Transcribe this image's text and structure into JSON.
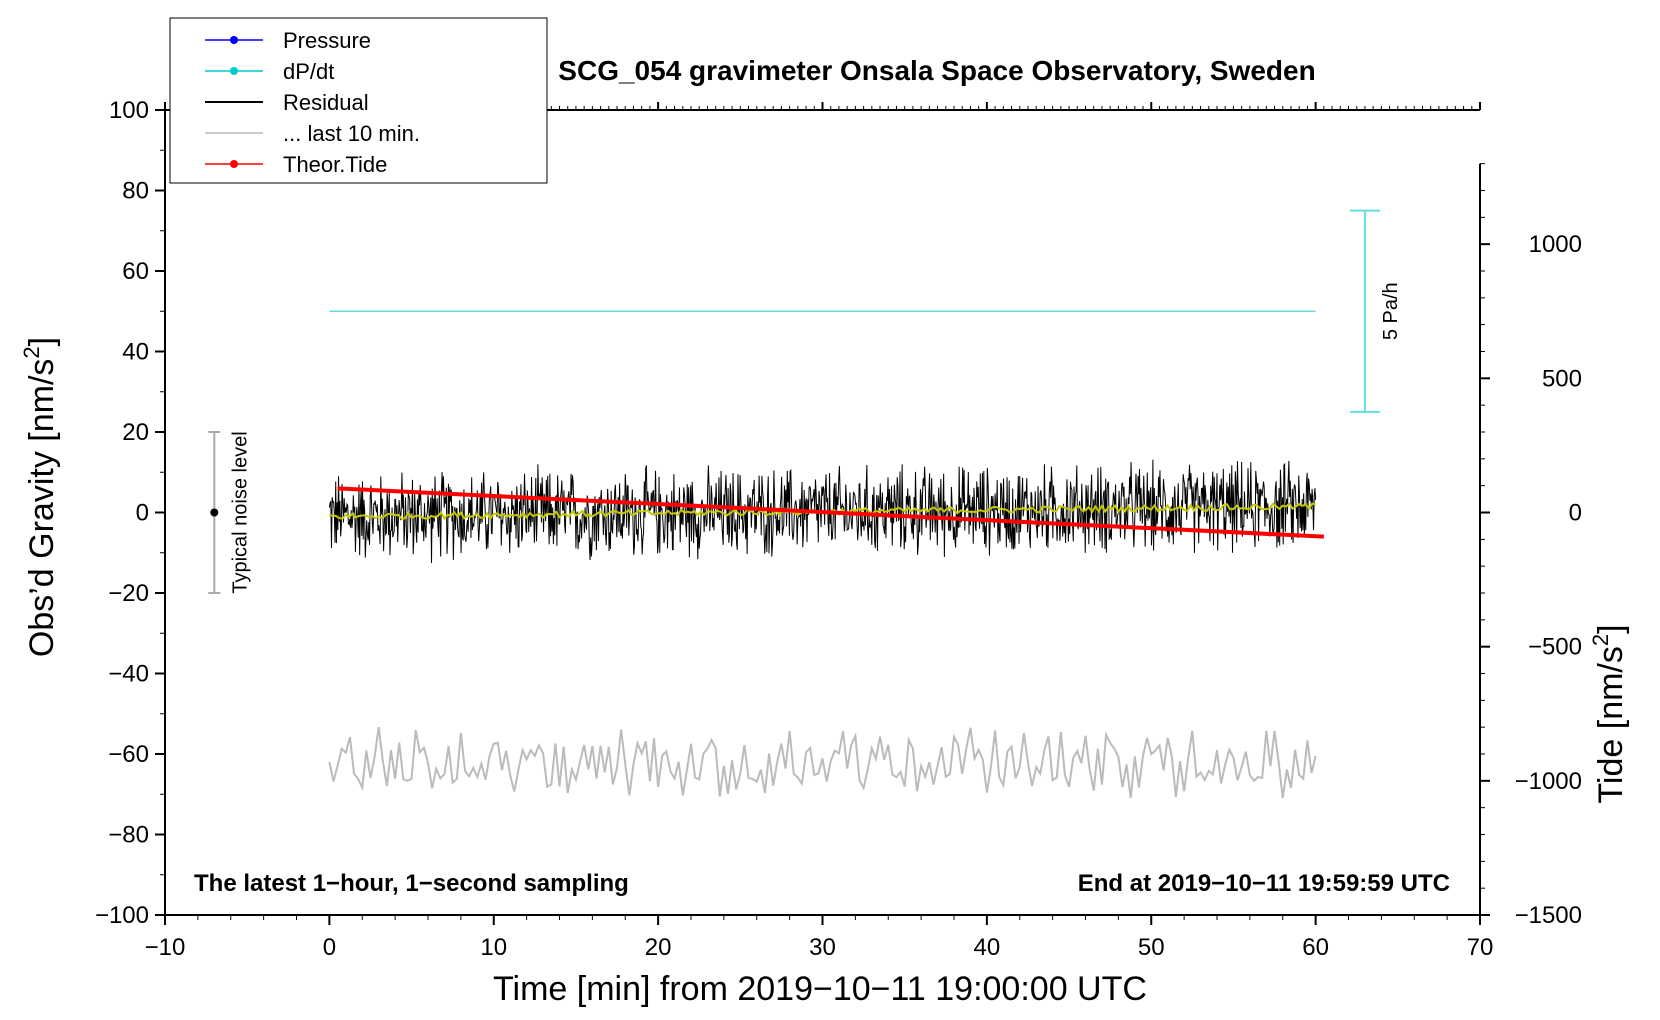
{
  "chart_data": {
    "type": "line",
    "title": "SCG_054 gravimeter Onsala Space Observatory, Sweden",
    "xlabel": "Time [min] from 2019−10−11 19:00:00 UTC",
    "ylabel_left": "Obs’d Gravity [nm/s",
    "ylabel_left_sup": "2",
    "ylabel_left_end": "]",
    "ylabel_right": "Tide [nm/s",
    "ylabel_right_sup": "2",
    "ylabel_right_end": "]",
    "xlim": [
      -10,
      70
    ],
    "ylim_left": [
      -100,
      100
    ],
    "ylim_right": [
      -1500,
      1500
    ],
    "x_ticks": [
      -10,
      0,
      10,
      20,
      30,
      40,
      50,
      60,
      70
    ],
    "x_tick_labels": [
      "−10",
      "0",
      "10",
      "20",
      "30",
      "40",
      "50",
      "60",
      "70"
    ],
    "y_left_ticks": [
      -100,
      -80,
      -60,
      -40,
      -20,
      0,
      20,
      40,
      60,
      80,
      100
    ],
    "y_left_tick_labels": [
      "−100",
      "−80",
      "−60",
      "−40",
      "−20",
      "0",
      "20",
      "40",
      "60",
      "80",
      "100"
    ],
    "y_right_ticks": [
      -1500,
      -1000,
      -500,
      0,
      500,
      1000
    ],
    "y_right_tick_labels": [
      "−1500",
      "−1000",
      "−500",
      "0",
      "500",
      "1000"
    ],
    "legend": [
      {
        "label": "Pressure",
        "color": "#0000ff",
        "marker": true
      },
      {
        "label": "dP/dt",
        "color": "#00cccc",
        "marker": true
      },
      {
        "label": "Residual",
        "color": "#000000",
        "marker": false
      },
      {
        "label": "... last 10 min.",
        "color": "#bbbbbb",
        "marker": false
      },
      {
        "label": "Theor.Tide",
        "color": "#ff0000",
        "marker": true
      }
    ],
    "series": [
      {
        "name": "dP/dt",
        "color": "#66dddd",
        "x": [
          0,
          60
        ],
        "y": [
          50,
          50
        ]
      },
      {
        "name": "Residual",
        "color": "#000000",
        "x_range": [
          0,
          60
        ],
        "mean_start": -1,
        "mean_end": 1.5,
        "amplitude": 13
      },
      {
        "name": "Residual smoothed",
        "color": "#c8c800",
        "x_range": [
          0,
          60
        ],
        "y_start": -1,
        "y_end": 1.5
      },
      {
        "name": "Theor.Tide",
        "color": "#ff0000",
        "axis": "right",
        "x": [
          0.5,
          60.5
        ],
        "y": [
          90,
          -90
        ]
      },
      {
        "name": "... last 10 min.",
        "color": "#bbbbbb",
        "x_range": [
          0,
          60
        ],
        "mean": -62,
        "amplitude": 9
      }
    ],
    "noise_bar": {
      "label": "Typical noise level",
      "x": -7,
      "y": 0,
      "low": -20,
      "high": 20
    },
    "scale_bar": {
      "label": "5 Pa/h",
      "x": 63,
      "low": 25,
      "high": 75
    },
    "annotation_left": "The latest 1−hour, 1−second sampling",
    "annotation_right": "End at 2019−10−11 19:59:59 UTC"
  }
}
